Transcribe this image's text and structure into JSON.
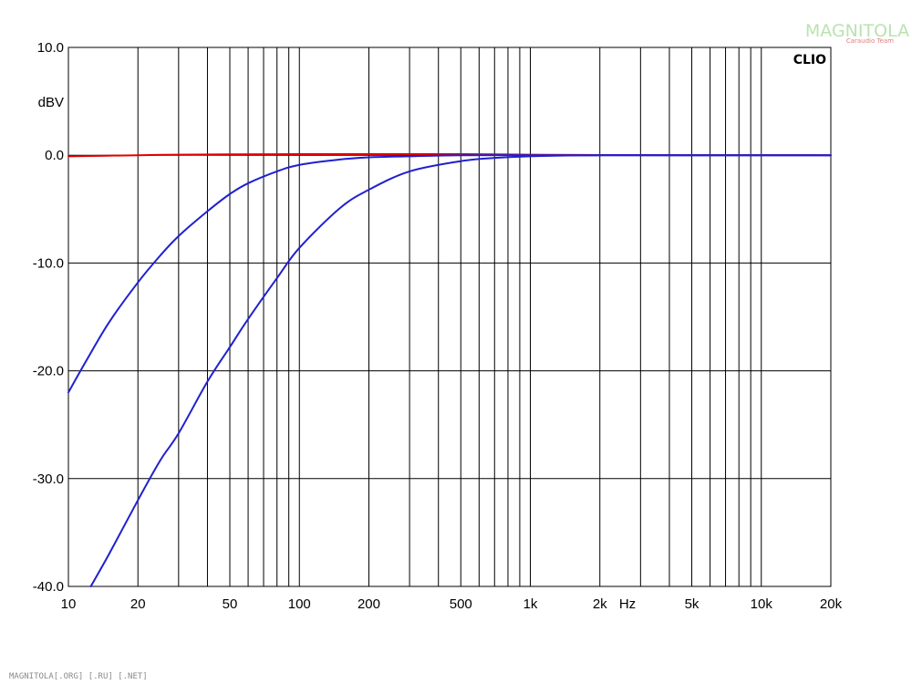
{
  "logo": {
    "text": "MAGNITOLA",
    "subtext": "Caraudio Team"
  },
  "footer": {
    "watermark": "MAGNITOLA[.ORG] [.RU] [.NET]"
  },
  "chart_data": {
    "type": "line",
    "brand": "CLIO",
    "ylabel": "dBV",
    "xunit": "Hz",
    "xscale": "log",
    "xlim": [
      10,
      20000
    ],
    "ylim": [
      -40,
      10
    ],
    "grid": true,
    "x_tick_labels": [
      "10",
      "20",
      "50",
      "100",
      "200",
      "500",
      "1k",
      "2k",
      "5k",
      "10k",
      "20k"
    ],
    "x_tick_values": [
      10,
      20,
      50,
      100,
      200,
      500,
      1000,
      2000,
      5000,
      10000,
      20000
    ],
    "y_tick_labels": [
      "10.0",
      "0.0",
      "-10.0",
      "-20.0",
      "-30.0",
      "-40.0"
    ],
    "y_tick_values": [
      10,
      0,
      -10,
      -20,
      -30,
      -40
    ],
    "series": [
      {
        "color": "#e00000",
        "x": [
          10,
          20,
          30,
          50,
          100,
          200,
          500,
          1000,
          2000,
          20000
        ],
        "y": [
          -0.1,
          0.0,
          0.05,
          0.08,
          0.1,
          0.1,
          0.1,
          0.05,
          0.02,
          0.0
        ]
      },
      {
        "color": "#2020d0",
        "x": [
          10,
          12,
          15,
          20,
          25,
          30,
          40,
          50,
          60,
          80,
          100,
          150,
          200,
          300,
          500,
          1000,
          2000,
          5000,
          20000
        ],
        "y": [
          -22,
          -19,
          -15.5,
          -11.8,
          -9.3,
          -7.5,
          -5.2,
          -3.6,
          -2.6,
          -1.5,
          -0.9,
          -0.4,
          -0.2,
          -0.1,
          0,
          0,
          0,
          0,
          0
        ]
      },
      {
        "color": "#2020d0",
        "x": [
          12.5,
          15,
          20,
          25,
          30,
          40,
          50,
          60,
          80,
          100,
          150,
          200,
          300,
          500,
          700,
          1000,
          2000,
          5000,
          20000
        ],
        "y": [
          -40,
          -37,
          -32,
          -28.3,
          -25.8,
          -21,
          -17.8,
          -15.2,
          -11.4,
          -8.6,
          -4.9,
          -3.2,
          -1.5,
          -0.55,
          -0.25,
          -0.1,
          0,
          0,
          0
        ]
      }
    ]
  }
}
